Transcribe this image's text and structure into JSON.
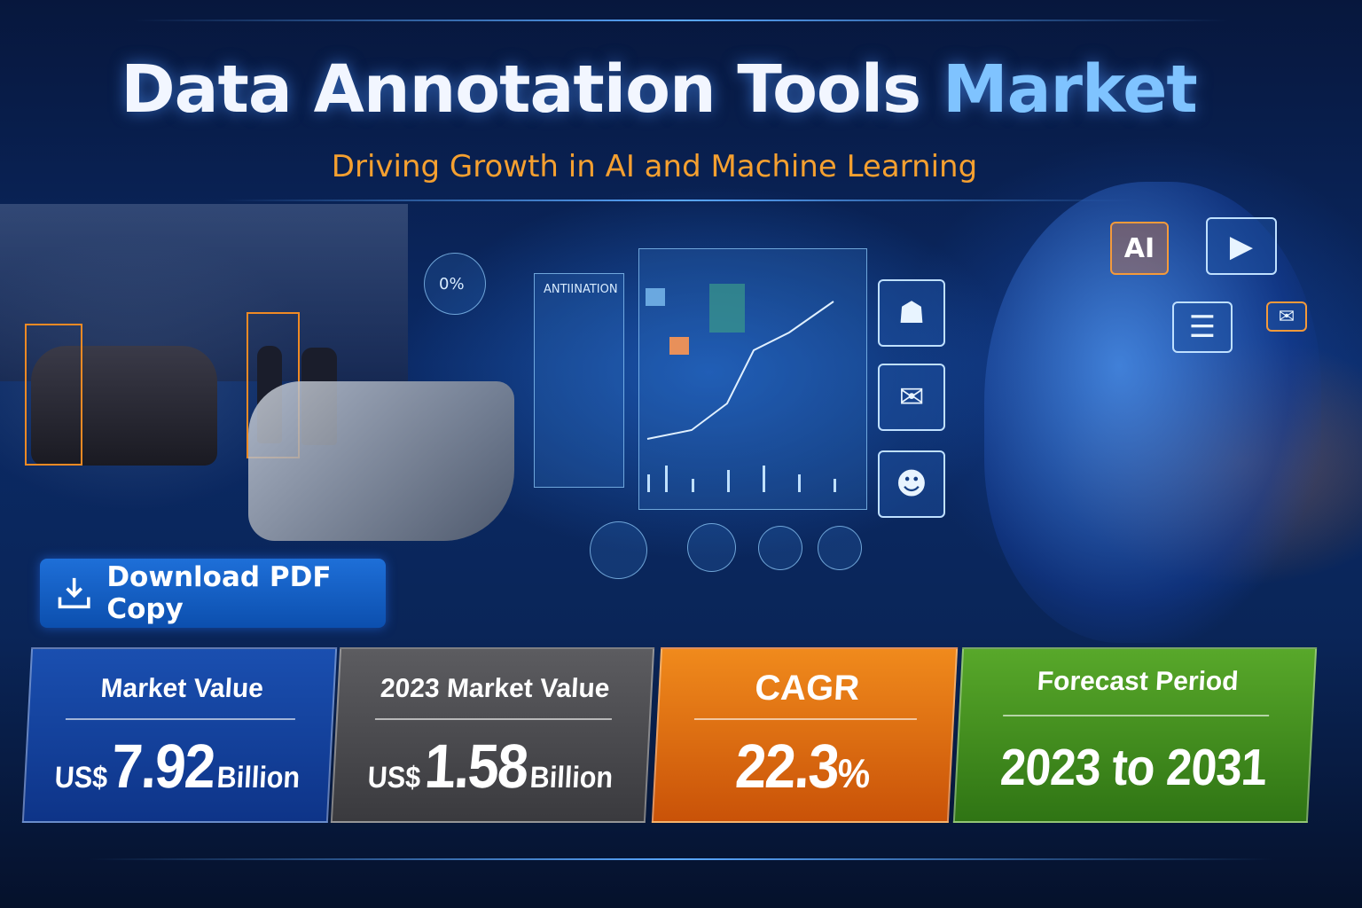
{
  "header": {
    "title_main": "Data Annotation Tools",
    "title_highlight": "Market",
    "subtitle": "Driving Growth in AI and Machine Learning"
  },
  "illustration": {
    "panel_heading": "ANTIINATION",
    "gauge_label": "0%",
    "ai_badge": "AI"
  },
  "download_button": {
    "label": "Download PDF Copy",
    "icon": "download-icon"
  },
  "stats": [
    {
      "label": "Market Value",
      "prefix": "US$",
      "value": "7.92",
      "unit": "Billion",
      "color": "#123f9e"
    },
    {
      "label": "2023 Market Value",
      "prefix": "US$",
      "value": "1.58",
      "unit": "Billion",
      "color": "#4f4f52"
    },
    {
      "label": "CAGR",
      "prefix": "",
      "value": "22.3",
      "unit": "%",
      "color": "#e06a0c"
    },
    {
      "label": "Forecast Period",
      "prefix": "",
      "value": "2023 to 2031",
      "unit": "",
      "color": "#3f8a1c"
    }
  ],
  "colors": {
    "title": "#f2f6ff",
    "title_highlight": "#7fc3ff",
    "subtitle": "#f5a030",
    "button": "#1565c8"
  }
}
